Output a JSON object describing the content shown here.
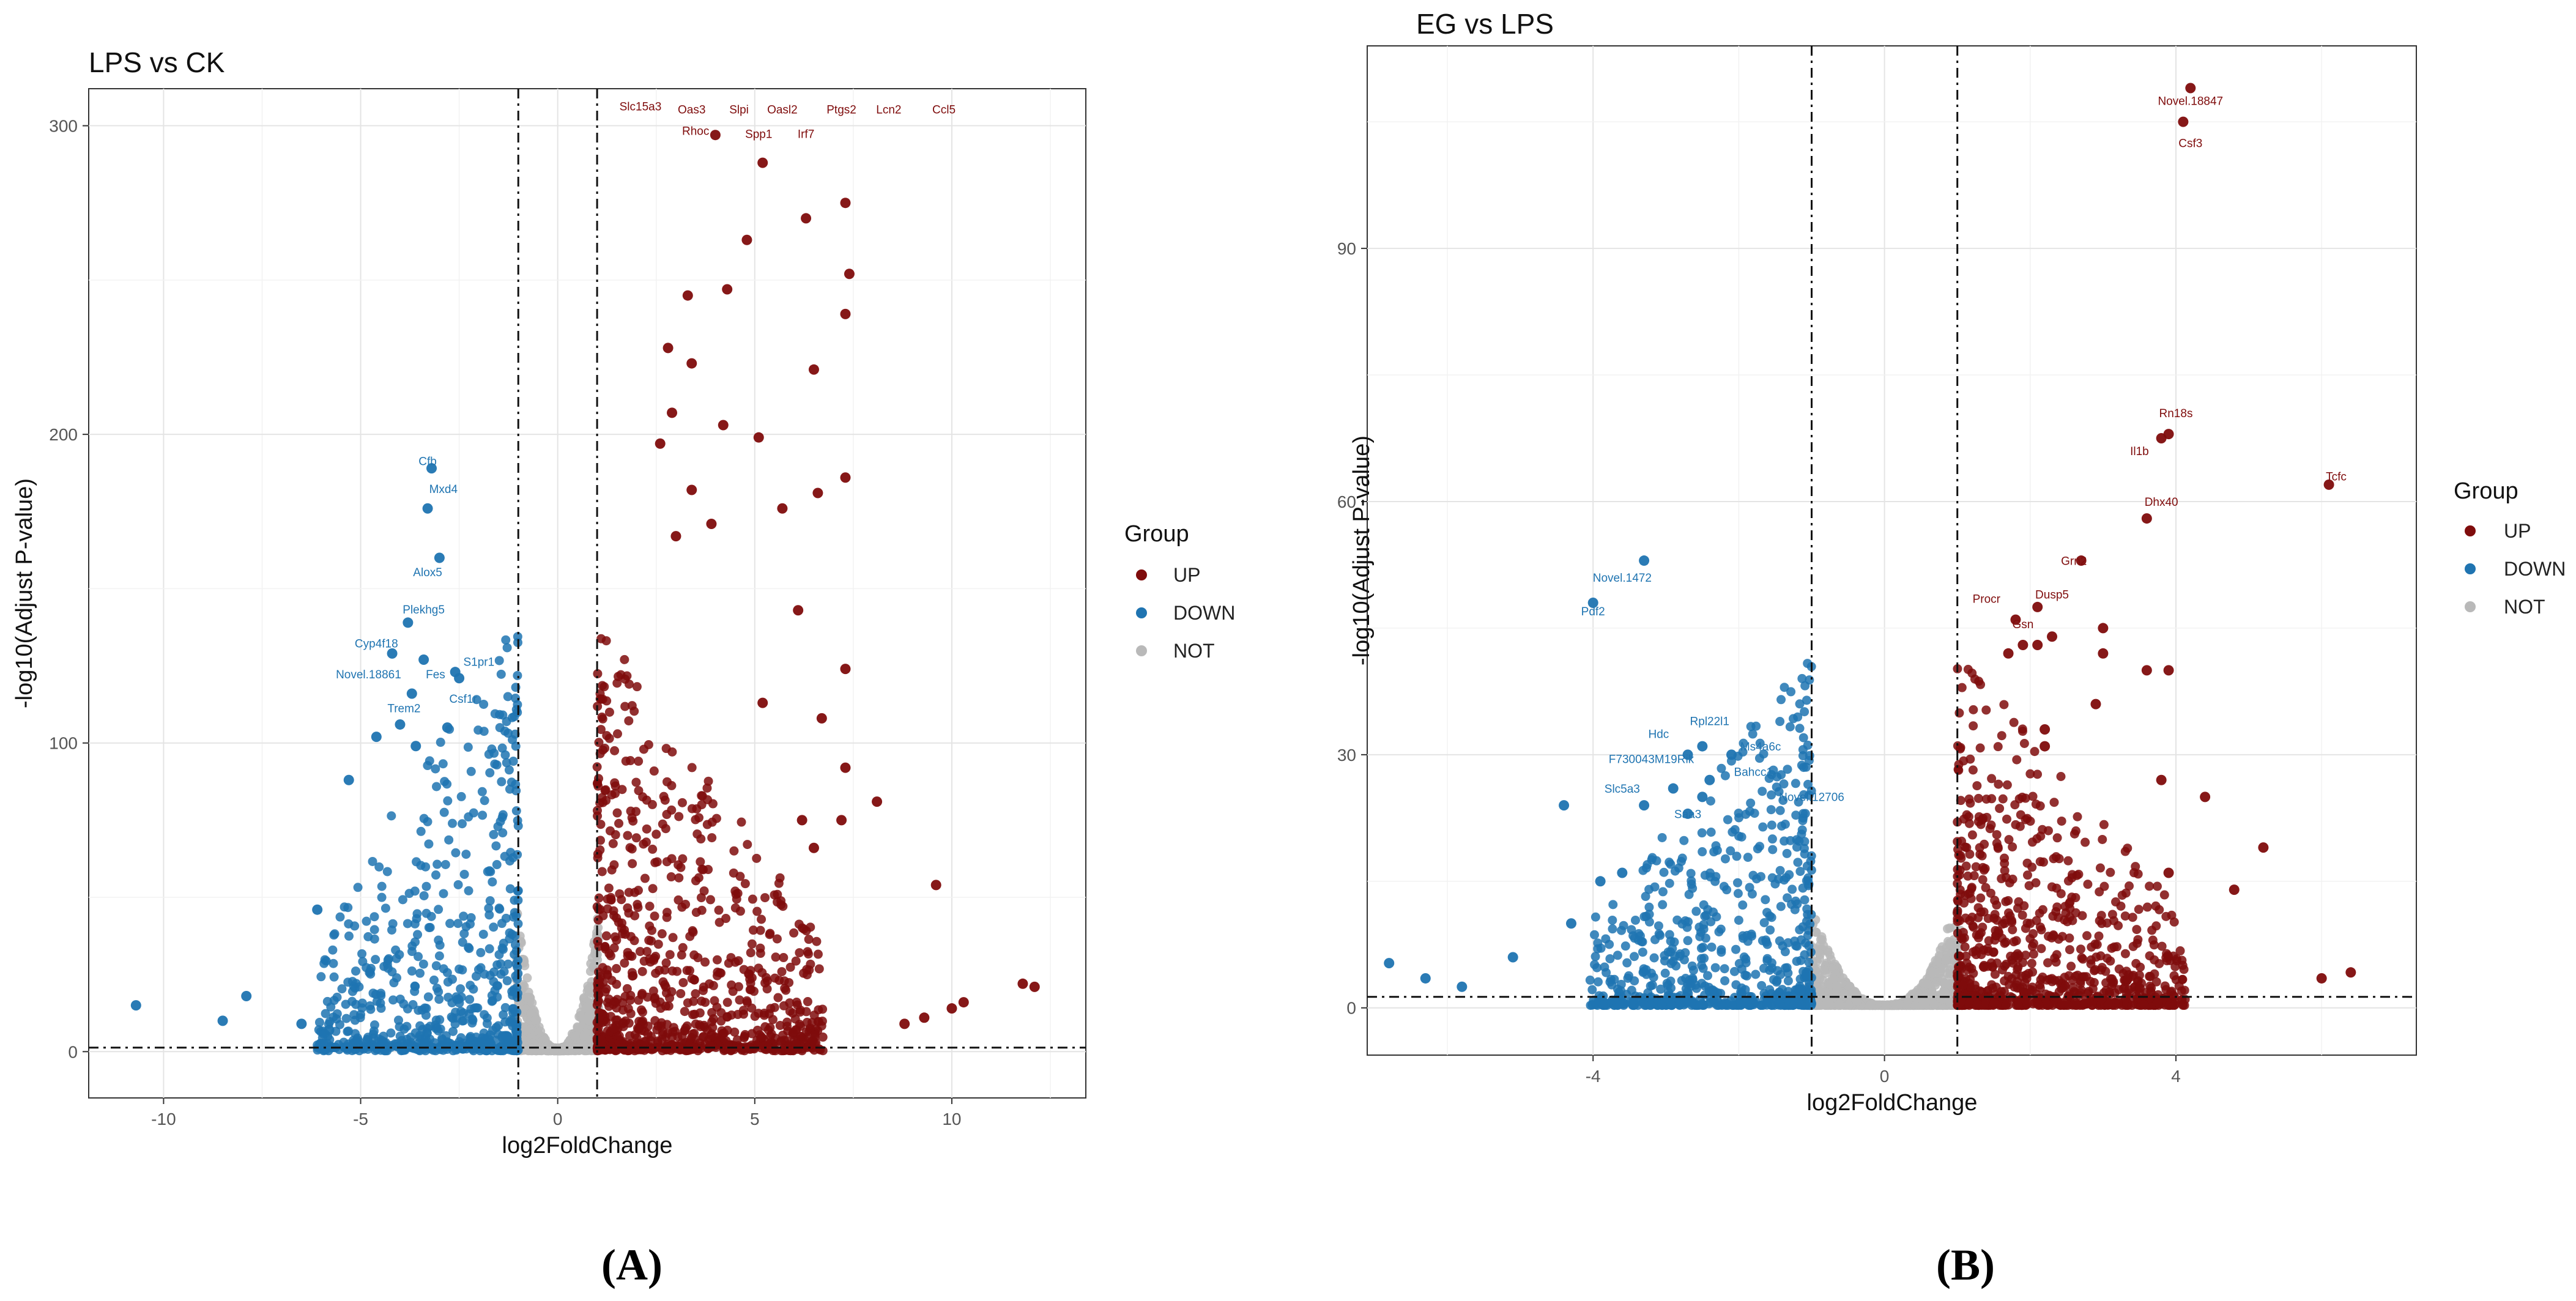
{
  "colors": {
    "UP": "#7f0c0c",
    "DOWN": "#1f74b1",
    "NOT": "#b9b9b9"
  },
  "chart_data": [
    {
      "type": "scatter",
      "caption": "(A)",
      "title": "LPS vs CK",
      "xlabel": "log2FoldChange",
      "ylabel": "-log10(Adjust P-value)",
      "xlim": [
        -11.9,
        13.4
      ],
      "ylim": [
        -15,
        312
      ],
      "xticks": [
        -10,
        -5,
        0,
        5,
        10
      ],
      "yticks": [
        0,
        100,
        200,
        300
      ],
      "fc_cut": 1,
      "p_line": 1.3,
      "legend": {
        "title": "Group",
        "items": [
          "UP",
          "DOWN",
          "NOT"
        ]
      },
      "series": [
        {
          "name": "UP",
          "points": [
            [
              4.0,
              297
            ],
            [
              5.2,
              288
            ],
            [
              7.3,
              275
            ],
            [
              6.3,
              270
            ],
            [
              4.8,
              263
            ],
            [
              7.4,
              252
            ],
            [
              7.3,
              239
            ],
            [
              4.3,
              247
            ],
            [
              3.3,
              245
            ],
            [
              6.5,
              221
            ],
            [
              2.8,
              228
            ],
            [
              3.4,
              223
            ],
            [
              2.9,
              207
            ],
            [
              4.2,
              203
            ],
            [
              5.1,
              199
            ],
            [
              2.6,
              197
            ],
            [
              7.3,
              186
            ],
            [
              6.6,
              181
            ],
            [
              3.4,
              182
            ],
            [
              5.7,
              176
            ],
            [
              3.9,
              171
            ],
            [
              3.0,
              167
            ],
            [
              6.1,
              143
            ],
            [
              7.3,
              124
            ],
            [
              5.2,
              113
            ],
            [
              6.7,
              108
            ],
            [
              7.3,
              92
            ],
            [
              6.2,
              75
            ],
            [
              7.2,
              75
            ],
            [
              8.1,
              81
            ],
            [
              6.5,
              66
            ],
            [
              9.6,
              54
            ],
            [
              12.1,
              21
            ],
            [
              11.8,
              22
            ],
            [
              10.3,
              16
            ],
            [
              10.0,
              14
            ],
            [
              9.3,
              11
            ],
            [
              8.8,
              9
            ]
          ]
        },
        {
          "name": "DOWN",
          "points": [
            [
              -3.2,
              189
            ],
            [
              -3.3,
              176
            ],
            [
              -3.0,
              160
            ],
            [
              -3.8,
              139
            ],
            [
              -4.2,
              129
            ],
            [
              -3.4,
              127
            ],
            [
              -2.6,
              123
            ],
            [
              -2.5,
              121
            ],
            [
              -3.7,
              116
            ],
            [
              -4.0,
              106
            ],
            [
              -2.8,
              105
            ],
            [
              -4.6,
              102
            ],
            [
              -3.6,
              99
            ],
            [
              -5.3,
              88
            ],
            [
              -6.1,
              46
            ],
            [
              -7.9,
              18
            ],
            [
              -8.5,
              10
            ],
            [
              -10.7,
              15
            ],
            [
              -6.5,
              9
            ],
            [
              -5.8,
              7
            ]
          ]
        }
      ],
      "labels": [
        {
          "text": "Slc15a3",
          "x": 2.1,
          "y": 305,
          "group": "UP"
        },
        {
          "text": "Oas3",
          "x": 3.4,
          "y": 304,
          "group": "UP"
        },
        {
          "text": "Slpi",
          "x": 4.6,
          "y": 304,
          "group": "UP"
        },
        {
          "text": "Oasl2",
          "x": 5.7,
          "y": 304,
          "group": "UP"
        },
        {
          "text": "Ptgs2",
          "x": 7.2,
          "y": 304,
          "group": "UP"
        },
        {
          "text": "Lcn2",
          "x": 8.4,
          "y": 304,
          "group": "UP"
        },
        {
          "text": "Ccl5",
          "x": 9.8,
          "y": 304,
          "group": "UP"
        },
        {
          "text": "Rhoc",
          "x": 3.5,
          "y": 297,
          "group": "UP"
        },
        {
          "text": "Spp1",
          "x": 5.1,
          "y": 296,
          "group": "UP"
        },
        {
          "text": "Irf7",
          "x": 6.3,
          "y": 296,
          "group": "UP"
        },
        {
          "text": "Cfb",
          "x": -3.3,
          "y": 190,
          "group": "DOWN"
        },
        {
          "text": "Mxd4",
          "x": -2.9,
          "y": 181,
          "group": "DOWN"
        },
        {
          "text": "Alox5",
          "x": -3.3,
          "y": 154,
          "group": "DOWN"
        },
        {
          "text": "Plekhg5",
          "x": -3.4,
          "y": 142,
          "group": "DOWN"
        },
        {
          "text": "Cyp4f18",
          "x": -4.6,
          "y": 131,
          "group": "DOWN"
        },
        {
          "text": "S1pr1",
          "x": -2.0,
          "y": 125,
          "group": "DOWN"
        },
        {
          "text": "Novel.18861",
          "x": -4.8,
          "y": 121,
          "group": "DOWN"
        },
        {
          "text": "Fes",
          "x": -3.1,
          "y": 121,
          "group": "DOWN"
        },
        {
          "text": "Csf1r",
          "x": -2.4,
          "y": 113,
          "group": "DOWN"
        },
        {
          "text": "Trem2",
          "x": -3.9,
          "y": 110,
          "group": "DOWN"
        }
      ]
    },
    {
      "type": "scatter",
      "caption": "(B)",
      "title": "EG vs LPS",
      "xlabel": "log2FoldChange",
      "ylabel": "-log10(Adjust P-value)",
      "xlim": [
        -7.1,
        7.3
      ],
      "ylim": [
        -5.6,
        114
      ],
      "xticks": [
        -4,
        0,
        4
      ],
      "yticks": [
        0,
        30,
        60,
        90
      ],
      "fc_cut": 1,
      "p_line": 1.3,
      "legend": {
        "title": "Group",
        "items": [
          "UP",
          "DOWN",
          "NOT"
        ]
      },
      "series": [
        {
          "name": "UP",
          "points": [
            [
              4.2,
              109
            ],
            [
              4.1,
              105
            ],
            [
              3.9,
              68
            ],
            [
              3.8,
              67.5
            ],
            [
              6.1,
              62
            ],
            [
              3.6,
              58
            ],
            [
              2.7,
              53
            ],
            [
              2.1,
              47.5
            ],
            [
              1.8,
              46
            ],
            [
              2.1,
              43
            ],
            [
              3.0,
              45
            ],
            [
              1.9,
              43
            ],
            [
              2.3,
              44
            ],
            [
              1.7,
              42
            ],
            [
              3.0,
              42
            ],
            [
              3.6,
              40
            ],
            [
              3.9,
              40
            ],
            [
              2.9,
              36
            ],
            [
              2.2,
              33
            ],
            [
              2.2,
              31
            ],
            [
              3.8,
              27
            ],
            [
              4.4,
              25
            ],
            [
              5.2,
              19
            ],
            [
              3.9,
              16
            ],
            [
              4.8,
              14
            ],
            [
              6.4,
              4.2
            ],
            [
              6.0,
              3.5
            ]
          ]
        },
        {
          "name": "DOWN",
          "points": [
            [
              -3.3,
              53
            ],
            [
              -4.0,
              48
            ],
            [
              -2.5,
              31
            ],
            [
              -2.4,
              27
            ],
            [
              -2.7,
              30
            ],
            [
              -2.1,
              30
            ],
            [
              -2.9,
              26
            ],
            [
              -2.5,
              25
            ],
            [
              -3.3,
              24
            ],
            [
              -4.4,
              24
            ],
            [
              -2.7,
              23
            ],
            [
              -3.6,
              16
            ],
            [
              -3.9,
              15
            ],
            [
              -4.3,
              10
            ],
            [
              -5.1,
              6
            ],
            [
              -6.8,
              5.3
            ],
            [
              -6.3,
              3.5
            ],
            [
              -5.8,
              2.5
            ]
          ]
        }
      ],
      "labels": [
        {
          "text": "Novel.18847",
          "x": 4.2,
          "y": 107,
          "group": "UP"
        },
        {
          "text": "Csf3",
          "x": 4.2,
          "y": 102,
          "group": "UP"
        },
        {
          "text": "Rn18s",
          "x": 4.0,
          "y": 70,
          "group": "UP"
        },
        {
          "text": "Il1b",
          "x": 3.5,
          "y": 65.5,
          "group": "UP"
        },
        {
          "text": "Tcfc",
          "x": 6.2,
          "y": 62.5,
          "group": "UP"
        },
        {
          "text": "Dhx40",
          "x": 3.8,
          "y": 59.5,
          "group": "UP"
        },
        {
          "text": "Grn2",
          "x": 2.6,
          "y": 52.5,
          "group": "UP"
        },
        {
          "text": "Dusp5",
          "x": 2.3,
          "y": 48.5,
          "group": "UP"
        },
        {
          "text": "Procr",
          "x": 1.4,
          "y": 48,
          "group": "UP"
        },
        {
          "text": "Gsn",
          "x": 1.9,
          "y": 45,
          "group": "UP"
        },
        {
          "text": "Novel.1472",
          "x": -3.6,
          "y": 50.5,
          "group": "DOWN"
        },
        {
          "text": "Pdf2",
          "x": -4.0,
          "y": 46.5,
          "group": "DOWN"
        },
        {
          "text": "Rpl22l1",
          "x": -2.4,
          "y": 33.5,
          "group": "DOWN"
        },
        {
          "text": "Hdc",
          "x": -3.1,
          "y": 32,
          "group": "DOWN"
        },
        {
          "text": "Ms4a6c",
          "x": -1.7,
          "y": 30.5,
          "group": "DOWN"
        },
        {
          "text": "F730043M19Rik",
          "x": -3.2,
          "y": 29,
          "group": "DOWN"
        },
        {
          "text": "Bahcc1",
          "x": -1.8,
          "y": 27.5,
          "group": "DOWN"
        },
        {
          "text": "Slc5a3",
          "x": -3.6,
          "y": 25.5,
          "group": "DOWN"
        },
        {
          "text": "Novel.12706",
          "x": -1.0,
          "y": 24.5,
          "group": "DOWN"
        },
        {
          "text": "Saa3",
          "x": -2.7,
          "y": 22.5,
          "group": "DOWN"
        }
      ]
    }
  ]
}
